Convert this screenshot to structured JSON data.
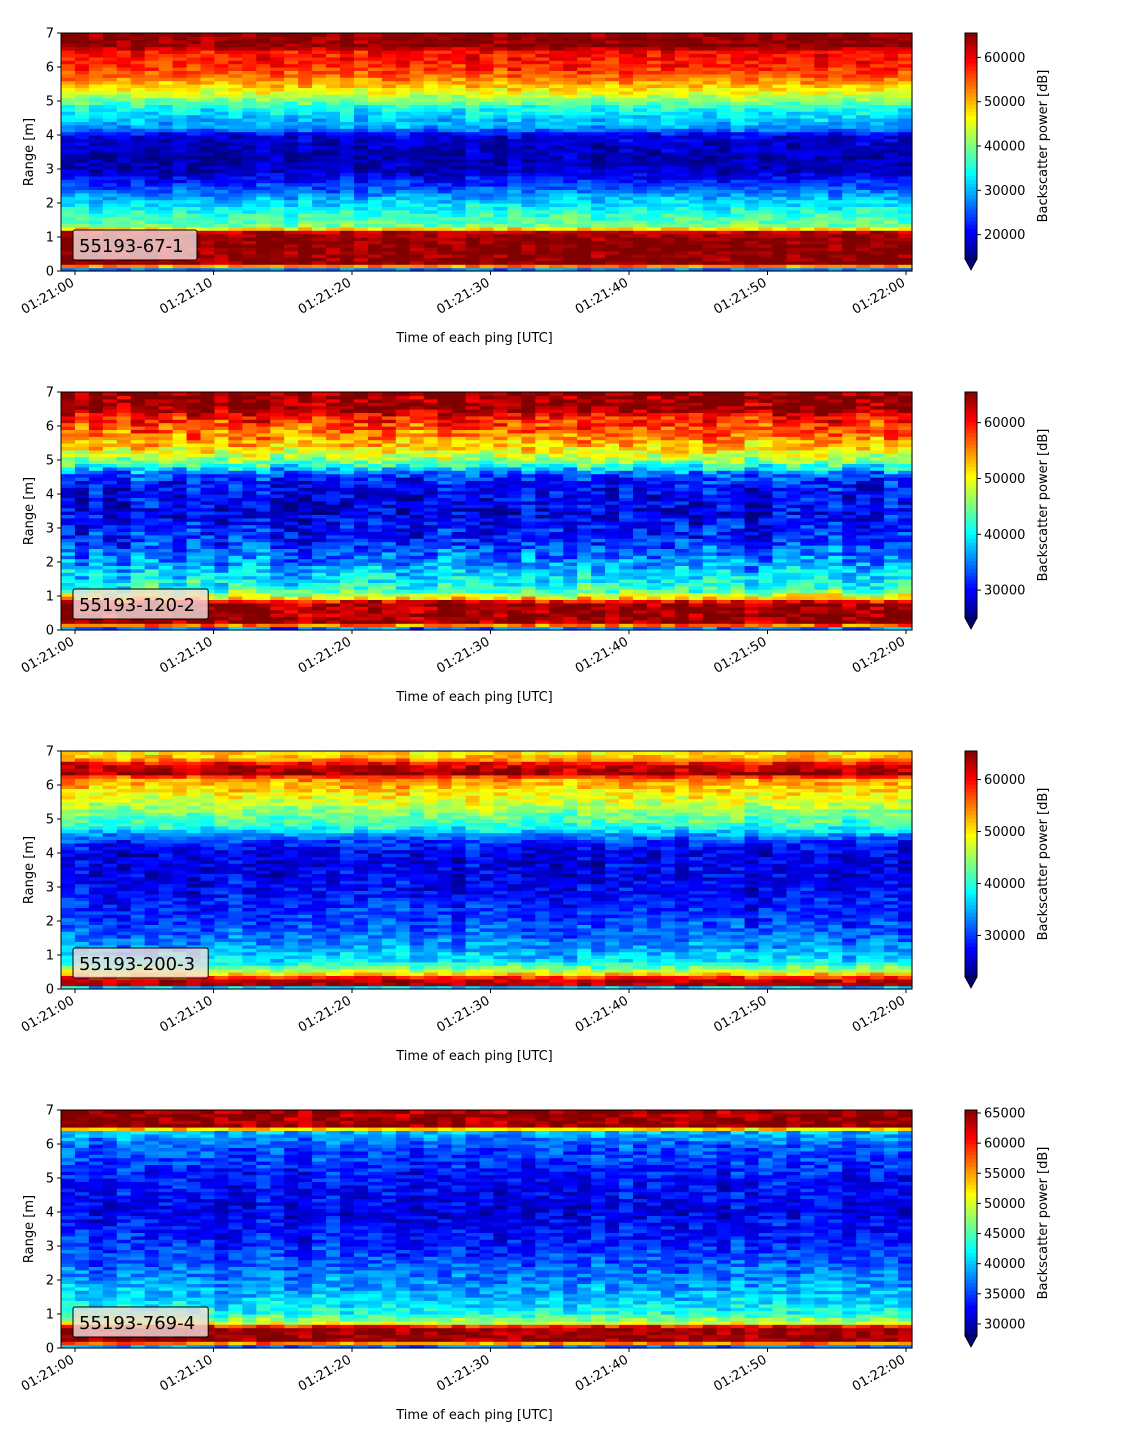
{
  "chart_data": [
    {
      "type": "heatmap",
      "label": "55193-67-1",
      "xlabel": "Time of each ping [UTC]",
      "ylabel": "Range [m]",
      "colorbar_label": "Backscatter power [dB]",
      "colormap": "jet",
      "x_ticks": [
        "01:21:00",
        "01:21:10",
        "01:21:20",
        "01:21:30",
        "01:21:40",
        "01:21:50",
        "01:22:00"
      ],
      "y_ticks": [
        0,
        1,
        2,
        3,
        4,
        5,
        6,
        7
      ],
      "ylim": [
        0,
        7
      ],
      "clim": [
        14500,
        65500
      ],
      "colorbar_ticks": [
        20000,
        30000,
        40000,
        50000,
        60000
      ],
      "range_profile": [
        [
          0,
          14500
        ],
        [
          0.2,
          65000
        ],
        [
          1.0,
          65000
        ],
        [
          1.15,
          62000
        ],
        [
          1.3,
          40000
        ],
        [
          2.0,
          32000
        ],
        [
          2.5,
          24000
        ],
        [
          3.0,
          17000
        ],
        [
          3.5,
          17000
        ],
        [
          4.0,
          19000
        ],
        [
          4.2,
          28000
        ],
        [
          4.8,
          34000
        ],
        [
          5.2,
          44000
        ],
        [
          5.6,
          52000
        ],
        [
          6.0,
          57000
        ],
        [
          6.5,
          59000
        ],
        [
          6.6,
          65000
        ],
        [
          7.0,
          65000
        ]
      ],
      "variability": 4000
    },
    {
      "type": "heatmap",
      "label": "55193-120-2",
      "xlabel": "Time of each ping [UTC]",
      "ylabel": "Range [m]",
      "colorbar_label": "Backscatter power [dB]",
      "colormap": "jet",
      "x_ticks": [
        "01:21:00",
        "01:21:10",
        "01:21:20",
        "01:21:30",
        "01:21:40",
        "01:21:50",
        "01:22:00"
      ],
      "y_ticks": [
        0,
        1,
        2,
        3,
        4,
        5,
        6,
        7
      ],
      "ylim": [
        0,
        7
      ],
      "clim": [
        25000,
        65500
      ],
      "colorbar_ticks": [
        30000,
        40000,
        50000,
        60000
      ],
      "range_profile": [
        [
          0,
          25000
        ],
        [
          0.2,
          65000
        ],
        [
          0.8,
          65000
        ],
        [
          0.95,
          52000
        ],
        [
          1.2,
          42000
        ],
        [
          2.0,
          36000
        ],
        [
          2.6,
          32000
        ],
        [
          3.5,
          29000
        ],
        [
          4.3,
          30000
        ],
        [
          4.6,
          34000
        ],
        [
          5.0,
          46000
        ],
        [
          5.4,
          52000
        ],
        [
          5.8,
          56000
        ],
        [
          6.3,
          60000
        ],
        [
          6.5,
          65000
        ],
        [
          7.0,
          65000
        ]
      ],
      "variability": 5000
    },
    {
      "type": "heatmap",
      "label": "55193-200-3",
      "xlabel": "Time of each ping [UTC]",
      "ylabel": "Range [m]",
      "colorbar_label": "Backscatter power [dB]",
      "colormap": "jet",
      "x_ticks": [
        "01:21:00",
        "01:21:10",
        "01:21:20",
        "01:21:30",
        "01:21:40",
        "01:21:50",
        "01:22:00"
      ],
      "y_ticks": [
        0,
        1,
        2,
        3,
        4,
        5,
        6,
        7
      ],
      "ylim": [
        0,
        7
      ],
      "clim": [
        22000,
        65500
      ],
      "colorbar_ticks": [
        30000,
        40000,
        50000,
        60000
      ],
      "range_profile": [
        [
          0,
          22000
        ],
        [
          0.15,
          64000
        ],
        [
          0.3,
          62000
        ],
        [
          0.5,
          48000
        ],
        [
          0.8,
          38000
        ],
        [
          1.2,
          34000
        ],
        [
          2.0,
          30000
        ],
        [
          3.0,
          27000
        ],
        [
          4.0,
          26000
        ],
        [
          4.4,
          30000
        ],
        [
          4.8,
          40000
        ],
        [
          5.3,
          45000
        ],
        [
          5.8,
          50000
        ],
        [
          6.2,
          54000
        ],
        [
          6.35,
          64000
        ],
        [
          6.6,
          62000
        ],
        [
          6.8,
          52000
        ],
        [
          7.0,
          50000
        ]
      ],
      "variability": 4000
    },
    {
      "type": "heatmap",
      "label": "55193-769-4",
      "xlabel": "Time of each ping [UTC]",
      "ylabel": "Range [m]",
      "colorbar_label": "Backscatter power [dB]",
      "colormap": "jet",
      "x_ticks": [
        "01:21:00",
        "01:21:10",
        "01:21:20",
        "01:21:30",
        "01:21:40",
        "01:21:50",
        "01:22:00"
      ],
      "y_ticks": [
        0,
        1,
        2,
        3,
        4,
        5,
        6,
        7
      ],
      "ylim": [
        0,
        7
      ],
      "clim": [
        28000,
        65500
      ],
      "colorbar_ticks": [
        30000,
        35000,
        40000,
        45000,
        50000,
        55000,
        60000,
        65000
      ],
      "range_profile": [
        [
          0,
          28000
        ],
        [
          0.2,
          65000
        ],
        [
          0.6,
          65000
        ],
        [
          0.75,
          50000
        ],
        [
          1.0,
          43000
        ],
        [
          1.5,
          40000
        ],
        [
          2.2,
          37000
        ],
        [
          3.0,
          34000
        ],
        [
          4.0,
          32000
        ],
        [
          5.0,
          33000
        ],
        [
          6.0,
          36000
        ],
        [
          6.4,
          40000
        ],
        [
          6.5,
          65000
        ],
        [
          7.0,
          64000
        ]
      ],
      "variability": 3500
    }
  ]
}
